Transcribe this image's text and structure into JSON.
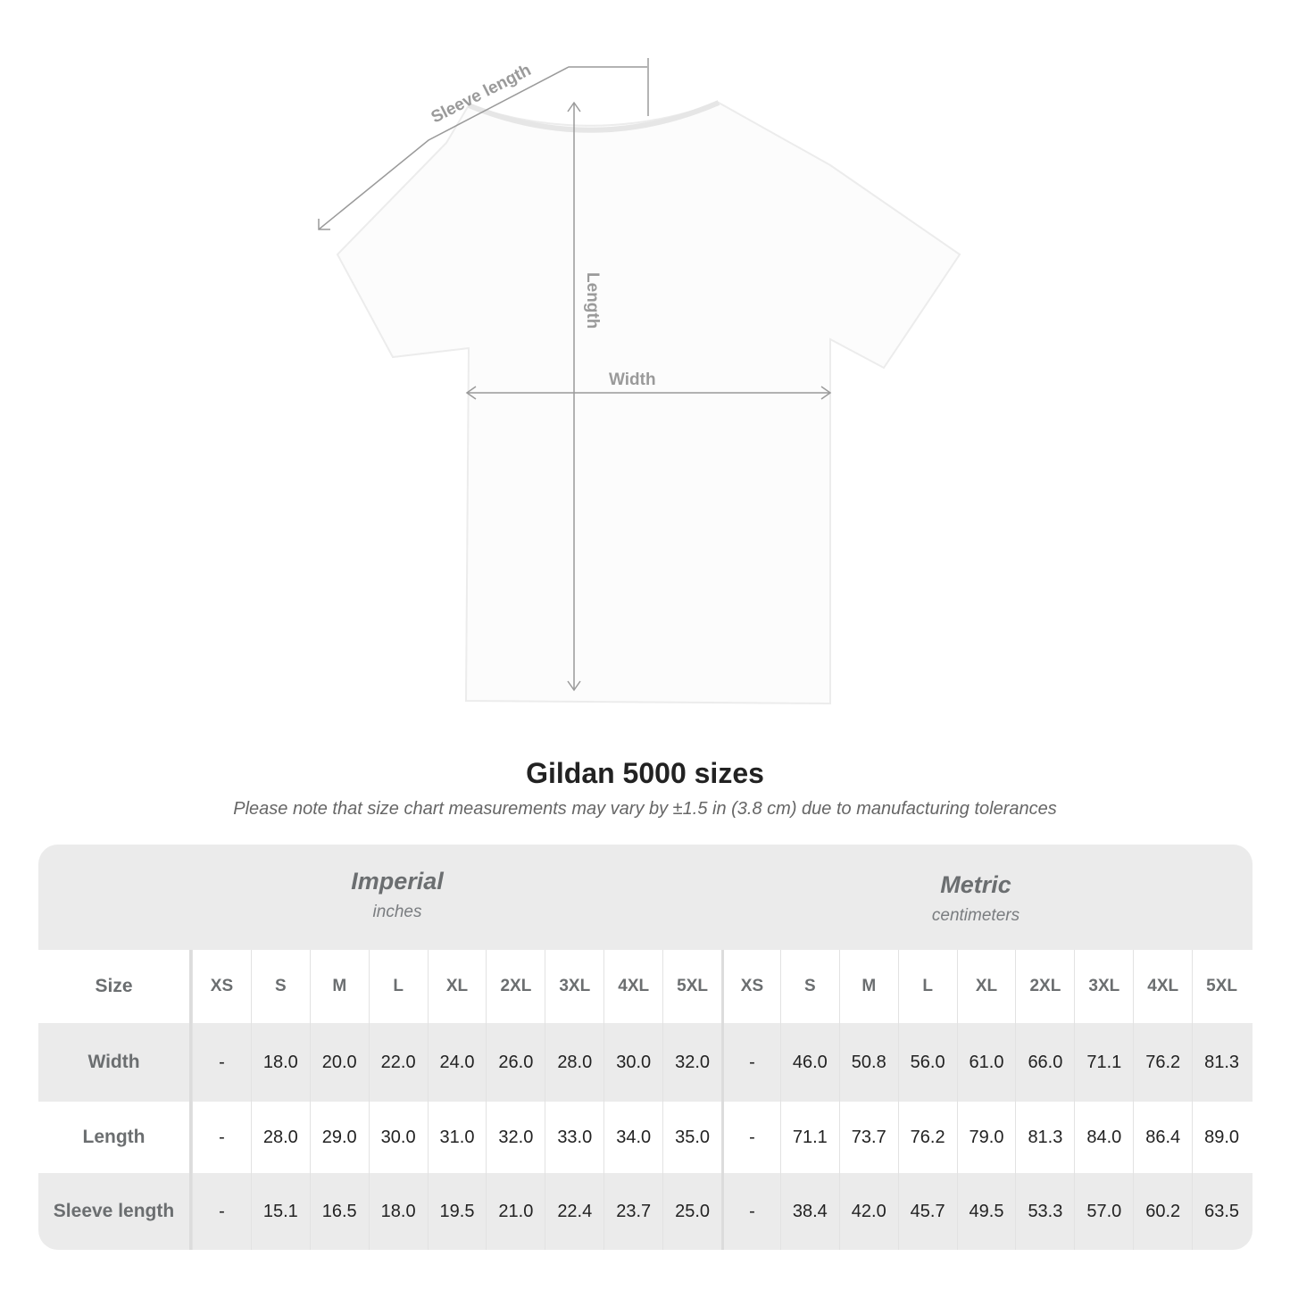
{
  "diagram": {
    "labels": {
      "sleeve": "Sleeve length",
      "length": "Length",
      "width": "Width"
    },
    "line_color": "#9a9a9a"
  },
  "title": "Gildan 5000 sizes",
  "note": "Please note that size chart measurements may vary by ±1.5 in (3.8 cm) due to manufacturing tolerances",
  "table": {
    "imperial": {
      "name": "Imperial",
      "unit": "inches"
    },
    "metric": {
      "name": "Metric",
      "unit": "centimeters"
    },
    "size_label": "Size",
    "sizes": [
      "XS",
      "S",
      "M",
      "L",
      "XL",
      "2XL",
      "3XL",
      "4XL",
      "5XL"
    ],
    "rows": [
      {
        "label": "Width",
        "imperial": [
          "-",
          "18.0",
          "20.0",
          "22.0",
          "24.0",
          "26.0",
          "28.0",
          "30.0",
          "32.0"
        ],
        "metric": [
          "-",
          "46.0",
          "50.8",
          "56.0",
          "61.0",
          "66.0",
          "71.1",
          "76.2",
          "81.3"
        ]
      },
      {
        "label": "Length",
        "imperial": [
          "-",
          "28.0",
          "29.0",
          "30.0",
          "31.0",
          "32.0",
          "33.0",
          "34.0",
          "35.0"
        ],
        "metric": [
          "-",
          "71.1",
          "73.7",
          "76.2",
          "79.0",
          "81.3",
          "84.0",
          "86.4",
          "89.0"
        ]
      },
      {
        "label": "Sleeve length",
        "imperial": [
          "-",
          "15.1",
          "16.5",
          "18.0",
          "19.5",
          "21.0",
          "22.4",
          "23.7",
          "25.0"
        ],
        "metric": [
          "-",
          "38.4",
          "42.0",
          "45.7",
          "49.5",
          "53.3",
          "57.0",
          "60.2",
          "63.5"
        ]
      }
    ],
    "header_bg": "#ebebeb"
  }
}
